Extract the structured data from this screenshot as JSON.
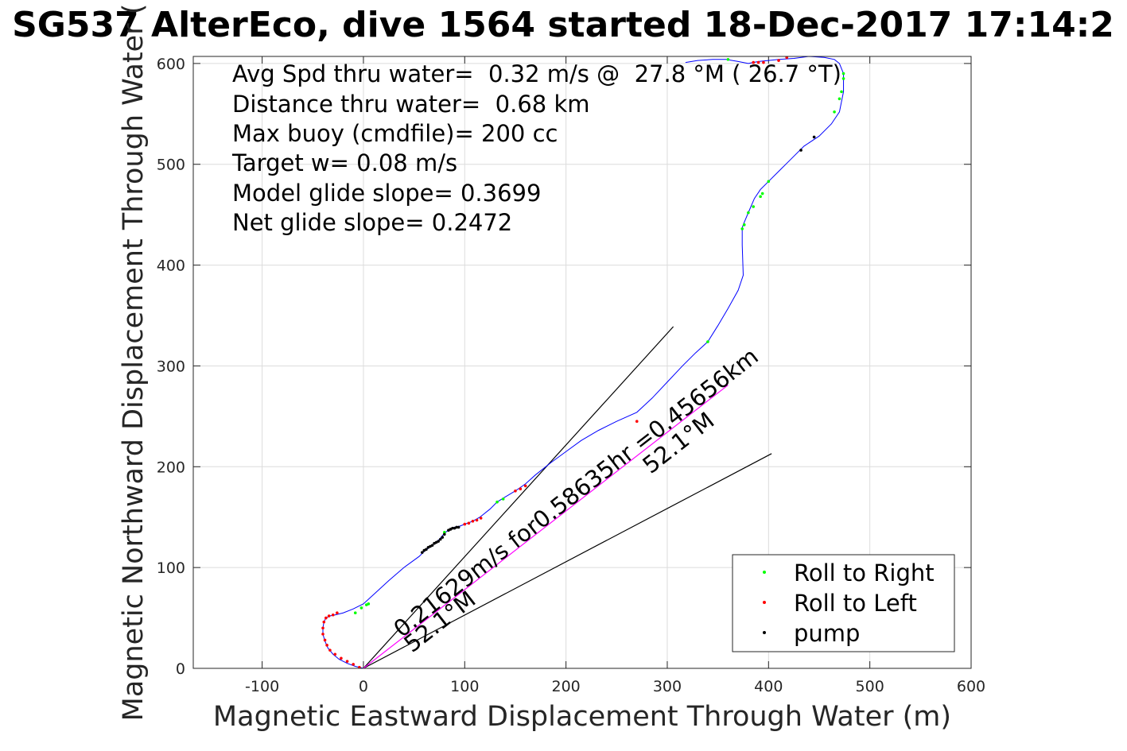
{
  "chart_data": {
    "type": "line",
    "title": "SG537 AlterEco, dive 1564 started 18-Dec-2017 17:14:2",
    "xlabel": "Magnetic Eastward Displacement Through Water (m)",
    "ylabel": "Magnetic Northward Displacement Through Water (",
    "xlim": [
      -168,
      600
    ],
    "ylim": [
      0,
      607
    ],
    "xticks": [
      "-100",
      "0",
      "100",
      "200",
      "300",
      "400",
      "500",
      "600"
    ],
    "yticks": [
      "0",
      "100",
      "200",
      "300",
      "400",
      "500",
      "600"
    ],
    "grid": true,
    "annotations": [
      "Avg Spd thru water=  0.32 m/s @  27.8 °M ( 26.7 °T)",
      "Distance thru water=  0.68 km",
      "Max buoy (cmdfile)= 200 cc",
      "Target w= 0.08 m/s",
      "Model glide slope= 0.3699",
      "Net glide slope= 0.2472"
    ],
    "rotated_labels": {
      "current": "0.21629m/s for0.58635hr =0.45656km",
      "current_heading": "52.1°M",
      "wedge_heading": "52.1°M"
    },
    "legend": {
      "placement": "bottom-right",
      "entries": [
        {
          "label": "Roll to Right",
          "color": "#00ff00"
        },
        {
          "label": "Roll to Left",
          "color": "#ff0000"
        },
        {
          "label": "pump",
          "color": "#000000"
        }
      ]
    },
    "colors": {
      "track": "#0000ff",
      "roll_right": "#00ff00",
      "roll_left": "#ff0000",
      "pump": "#000000",
      "current": "#ff00ff"
    },
    "series": [
      {
        "name": "track",
        "x": [
          0,
          -8,
          -16,
          -24,
          -30,
          -35,
          -38,
          -40,
          -40,
          -39,
          -37,
          -33,
          -28,
          -20,
          -10,
          0,
          12,
          25,
          40,
          55,
          60,
          68,
          75,
          80,
          85,
          90,
          95,
          100,
          108,
          115,
          125,
          132,
          140,
          150,
          160,
          170,
          185,
          200,
          215,
          232,
          250,
          270,
          285,
          300,
          315,
          328,
          340,
          350,
          360,
          370,
          375,
          374,
          374,
          375,
          380,
          386,
          392,
          400,
          410,
          420,
          435,
          450,
          462,
          470,
          474,
          474,
          470,
          465,
          455,
          440,
          425,
          410,
          400,
          390,
          380,
          370,
          358,
          345,
          330,
          318
        ],
        "y": [
          0,
          2,
          5,
          9,
          14,
          20,
          27,
          34,
          40,
          46,
          50,
          52,
          53,
          55,
          59,
          64,
          75,
          87,
          100,
          111,
          116,
          122,
          128,
          134,
          138,
          140,
          141,
          143,
          146,
          150,
          158,
          165,
          170,
          176,
          183,
          192,
          204,
          215,
          226,
          236,
          245,
          254,
          268,
          284,
          300,
          313,
          324,
          340,
          357,
          375,
          390,
          420,
          437,
          440,
          452,
          466,
          475,
          483,
          493,
          503,
          518,
          528,
          540,
          552,
          572,
          590,
          600,
          604,
          606,
          607,
          605,
          604,
          603,
          602,
          600,
          602,
          604,
          604,
          603,
          601
        ]
      },
      {
        "name": "Roll to Right",
        "x": [
          -8,
          -2,
          3,
          5,
          80,
          132,
          138,
          340,
          360,
          374,
          376,
          380,
          385,
          392,
          394,
          400,
          465,
          470,
          472,
          474,
          474
        ],
        "y": [
          55,
          60,
          63,
          64,
          135,
          165,
          168,
          324,
          604,
          436,
          440,
          452,
          458,
          468,
          471,
          483,
          552,
          565,
          572,
          585,
          590
        ]
      },
      {
        "name": "Roll to Left",
        "x": [
          -4,
          -10,
          -16,
          -22,
          -28,
          -33,
          -36,
          -38,
          -40,
          -40,
          -39,
          -37,
          -34,
          -30,
          -26,
          100,
          104,
          108,
          112,
          116,
          150,
          155,
          160,
          270,
          385,
          390,
          395,
          410,
          418
        ],
        "y": [
          1,
          4,
          7,
          10,
          14,
          18,
          23,
          28,
          34,
          40,
          46,
          50,
          52,
          53,
          55,
          143,
          144,
          146,
          147,
          149,
          176,
          178,
          181,
          245,
          601,
          601,
          601,
          603,
          606
        ]
      },
      {
        "name": "pump",
        "x": [
          58,
          60,
          62,
          64,
          66,
          68,
          70,
          72,
          74,
          76,
          78,
          80,
          84,
          86,
          88,
          90,
          92,
          94,
          432,
          445
        ],
        "y": [
          115,
          117,
          118,
          120,
          121,
          122,
          124,
          125,
          126,
          128,
          130,
          133,
          137,
          138,
          139,
          139,
          140,
          140,
          514,
          527
        ]
      },
      {
        "name": "current",
        "x": [
          0,
          360
        ],
        "y": [
          0,
          281
        ]
      },
      {
        "name": "glide-wedge-upper",
        "x": [
          0,
          306
        ],
        "y": [
          0,
          339
        ]
      },
      {
        "name": "glide-wedge-lower",
        "x": [
          0,
          403
        ],
        "y": [
          0,
          213
        ]
      }
    ]
  }
}
